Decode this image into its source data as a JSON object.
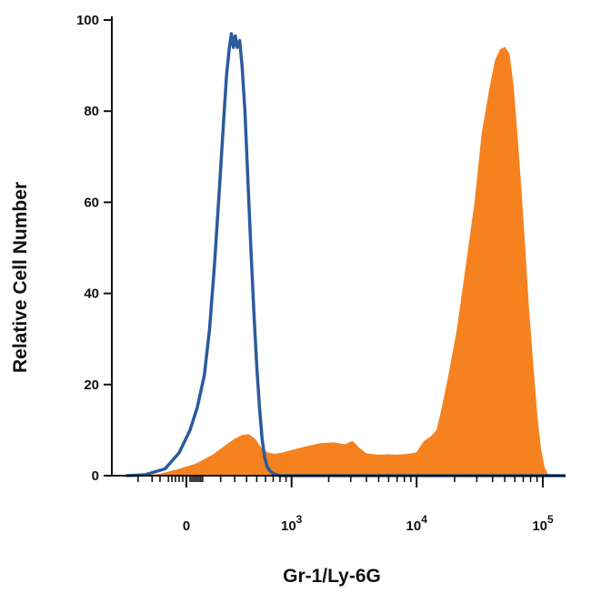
{
  "colors": {
    "axis": "#111111",
    "isotype_line": "#2a5b9e",
    "stained_fill": "#f5821f"
  },
  "chart_data": {
    "type": "area",
    "title": "",
    "xlabel": "Gr-1/Ly-6G",
    "ylabel": "Relative Cell Number",
    "x_scale": "biexponential",
    "x_ticks": [
      {
        "value": 0,
        "label": "0",
        "exp": ""
      },
      {
        "value": 1000,
        "label": "10",
        "exp": "3"
      },
      {
        "value": 10000,
        "label": "10",
        "exp": "4"
      },
      {
        "value": 100000,
        "label": "10",
        "exp": "5"
      }
    ],
    "y_ticks": [
      0,
      20,
      40,
      60,
      80,
      100
    ],
    "ylim": [
      0,
      100
    ],
    "grid": false,
    "legend": "none",
    "series": [
      {
        "style": "outline",
        "color": "#2a5b9e",
        "points": [
          [
            -400,
            0
          ],
          [
            -250,
            0.2
          ],
          [
            -120,
            1.5
          ],
          [
            -40,
            5
          ],
          [
            20,
            10
          ],
          [
            60,
            15
          ],
          [
            100,
            22
          ],
          [
            130,
            32
          ],
          [
            160,
            46
          ],
          [
            190,
            62
          ],
          [
            220,
            78
          ],
          [
            240,
            88
          ],
          [
            260,
            94
          ],
          [
            275,
            97
          ],
          [
            290,
            94
          ],
          [
            305,
            96.5
          ],
          [
            320,
            94
          ],
          [
            340,
            95.5
          ],
          [
            360,
            90
          ],
          [
            385,
            80
          ],
          [
            410,
            66
          ],
          [
            440,
            50
          ],
          [
            470,
            36
          ],
          [
            500,
            24
          ],
          [
            530,
            15
          ],
          [
            560,
            8
          ],
          [
            590,
            4
          ],
          [
            620,
            2
          ],
          [
            660,
            1
          ],
          [
            720,
            0.3
          ],
          [
            800,
            0
          ],
          [
            100000,
            0
          ],
          [
            400000,
            0
          ]
        ]
      },
      {
        "style": "filled",
        "color": "#f5821f",
        "points": [
          [
            -400,
            0
          ],
          [
            -250,
            0
          ],
          [
            -150,
            0.3
          ],
          [
            -50,
            1.3
          ],
          [
            50,
            2.5
          ],
          [
            150,
            4.5
          ],
          [
            230,
            6.5
          ],
          [
            300,
            8
          ],
          [
            360,
            8.8
          ],
          [
            420,
            9
          ],
          [
            480,
            8
          ],
          [
            550,
            6
          ],
          [
            620,
            5
          ],
          [
            720,
            4.7
          ],
          [
            850,
            5
          ],
          [
            1000,
            5.5
          ],
          [
            1300,
            6.3
          ],
          [
            1700,
            7
          ],
          [
            2200,
            7.2
          ],
          [
            2700,
            6.8
          ],
          [
            3100,
            7.5
          ],
          [
            3500,
            6
          ],
          [
            4000,
            4.8
          ],
          [
            5000,
            4.5
          ],
          [
            6000,
            4.6
          ],
          [
            7000,
            4.5
          ],
          [
            8500,
            4.7
          ],
          [
            10000,
            5
          ],
          [
            11500,
            7.5
          ],
          [
            13000,
            8.5
          ],
          [
            14500,
            10
          ],
          [
            16000,
            15
          ],
          [
            18000,
            22
          ],
          [
            21000,
            32
          ],
          [
            25000,
            47
          ],
          [
            29000,
            60
          ],
          [
            33000,
            75
          ],
          [
            38000,
            85
          ],
          [
            42000,
            91
          ],
          [
            46000,
            93.5
          ],
          [
            50000,
            94
          ],
          [
            54000,
            92.5
          ],
          [
            58000,
            86
          ],
          [
            62000,
            76
          ],
          [
            67000,
            63
          ],
          [
            72000,
            50
          ],
          [
            77000,
            37
          ],
          [
            83000,
            25
          ],
          [
            90000,
            13
          ],
          [
            96000,
            6
          ],
          [
            102000,
            2
          ],
          [
            108000,
            0.5
          ],
          [
            115000,
            0
          ],
          [
            400000,
            0
          ]
        ]
      }
    ]
  }
}
